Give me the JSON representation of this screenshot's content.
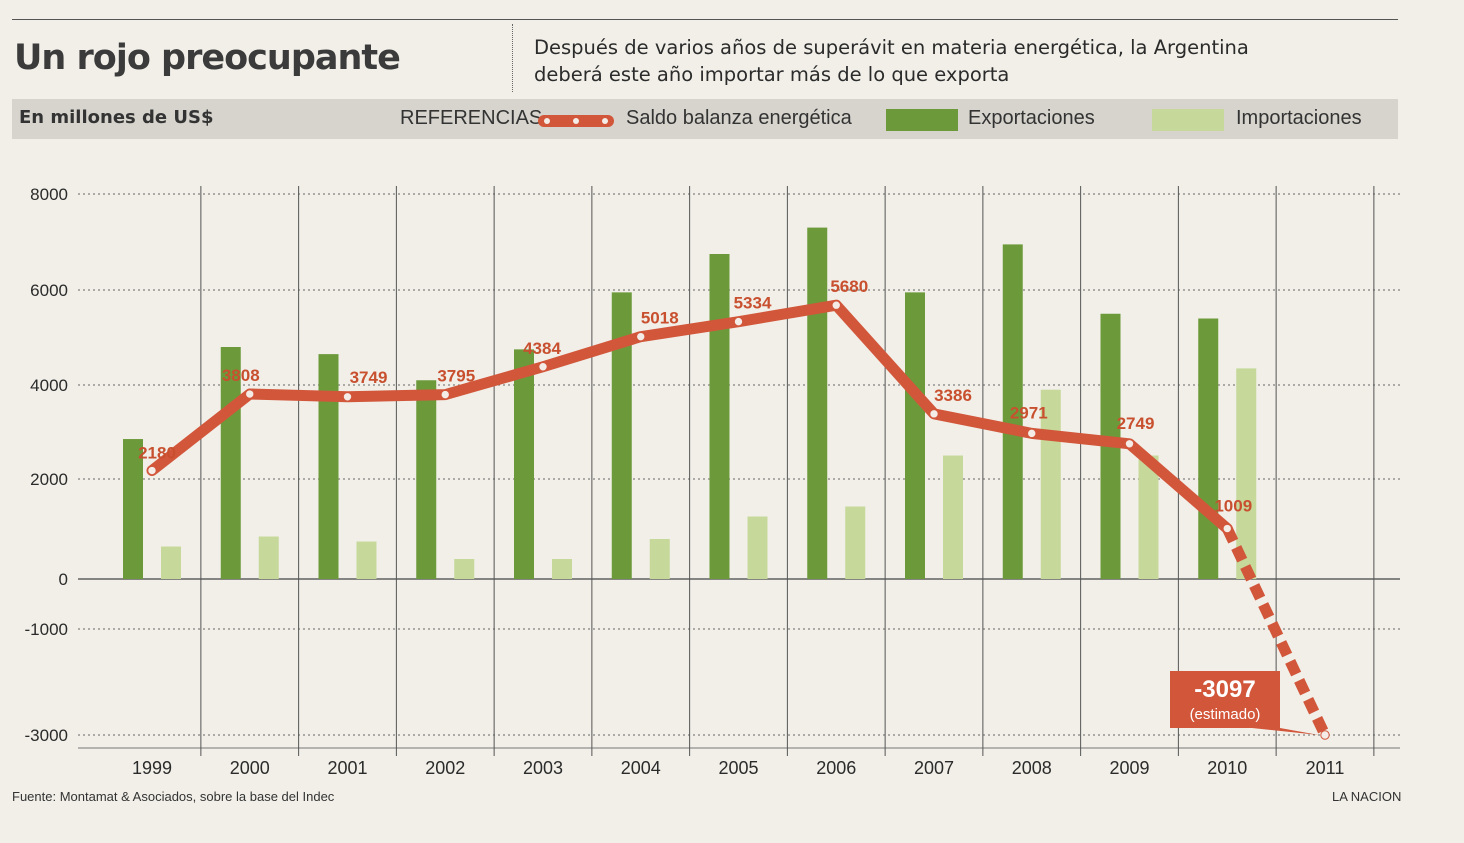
{
  "header": {
    "title": "Un rojo preocupante",
    "subtitle_line1": "Después de varios años de superávit en materia energética, la Argentina",
    "subtitle_line2": "deberá este año importar más de lo que exporta",
    "units": "En millones de US$"
  },
  "legend": {
    "references": "REFERENCIAS",
    "saldo": "Saldo balanza energética",
    "exportaciones": "Exportaciones",
    "importaciones": "Importaciones"
  },
  "colors": {
    "saldo_line": "#d2563a",
    "saldo_label": "#c8502f",
    "exportaciones": "#6c9a3a",
    "importaciones": "#c6d99a",
    "estimate_box": "#d2563a"
  },
  "chart_data": {
    "type": "bar",
    "title": "Un rojo preocupante",
    "ylabel": "En millones de US$",
    "categories": [
      "1999",
      "2000",
      "2001",
      "2002",
      "2003",
      "2004",
      "2005",
      "2006",
      "2007",
      "2008",
      "2009",
      "2010",
      "2011"
    ],
    "yticks": [
      8000,
      6000,
      4000,
      2000,
      0,
      -1000,
      -3000
    ],
    "ytick_labels": [
      "8000",
      "6000",
      "4000",
      "2000",
      "0",
      "-1000",
      "-3000"
    ],
    "grid": "dotted",
    "legend_position": "top",
    "series": [
      {
        "name": "Exportaciones",
        "kind": "bar",
        "values": [
          2850,
          4800,
          4650,
          4100,
          4750,
          5950,
          6750,
          7300,
          5950,
          6950,
          5500,
          5400,
          null
        ]
      },
      {
        "name": "Importaciones",
        "kind": "bar",
        "values": [
          650,
          850,
          750,
          400,
          400,
          800,
          1250,
          1450,
          2500,
          3900,
          2500,
          4350,
          null
        ]
      },
      {
        "name": "Saldo balanza energética",
        "kind": "line",
        "values": [
          2180,
          3808,
          3749,
          3795,
          4384,
          5018,
          5334,
          5680,
          3386,
          2971,
          2749,
          1009,
          -3097
        ],
        "labels": [
          "2180",
          "3808",
          "3749",
          "3795",
          "4384",
          "5018",
          "5334",
          "5680",
          "3386",
          "2971",
          "2749",
          "1009",
          "-3097"
        ],
        "estimated_from_index": 11
      }
    ],
    "annotation": {
      "value": "-3097",
      "note": "(estimado)"
    }
  },
  "footer": {
    "source": "Fuente: Montamat & Asociados, sobre la base del Indec",
    "credit": "LA NACION"
  }
}
